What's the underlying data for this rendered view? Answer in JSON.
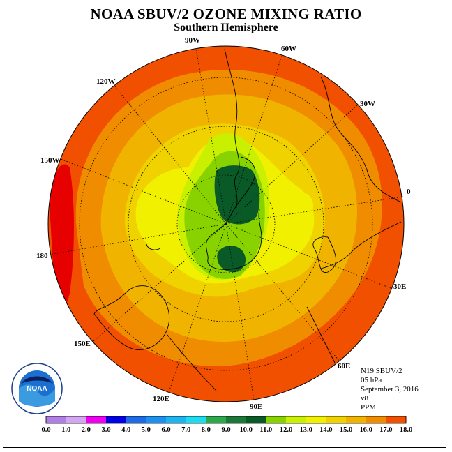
{
  "title": "NOAA SBUV/2 OZONE MIXING RATIO",
  "subtitle": "Southern Hemisphere",
  "longitude_labels": [
    "90W",
    "60W",
    "30W",
    "0",
    "30E",
    "60E",
    "90E",
    "120E",
    "150E",
    "180",
    "150W",
    "120W"
  ],
  "info": {
    "satellite": "N19 SBUV/2",
    "level": "05 hPa",
    "date": "September 3, 2016",
    "version": "v8",
    "units": "PPM"
  },
  "colorbar": {
    "labels": [
      "0.0",
      "1.0",
      "2.0",
      "3.0",
      "4.0",
      "5.0",
      "6.0",
      "7.0",
      "8.0",
      "9.0",
      "10.0",
      "11.0",
      "12.0",
      "13.0",
      "14.0",
      "15.0",
      "16.0",
      "17.0",
      "18.0"
    ],
    "colors": [
      "#b07fe6",
      "#d4a5f0",
      "#f000f0",
      "#0000e6",
      "#1e6be6",
      "#1e90f0",
      "#1eb4f0",
      "#1edcf0",
      "#2da84b",
      "#1a7a35",
      "#0a5a28",
      "#88d200",
      "#c8f000",
      "#f0f000",
      "#f0d200",
      "#f0b400",
      "#f08c00",
      "#f05000",
      "#e60000",
      "#8b5a2b"
    ]
  },
  "logo_text": "NOAA"
}
